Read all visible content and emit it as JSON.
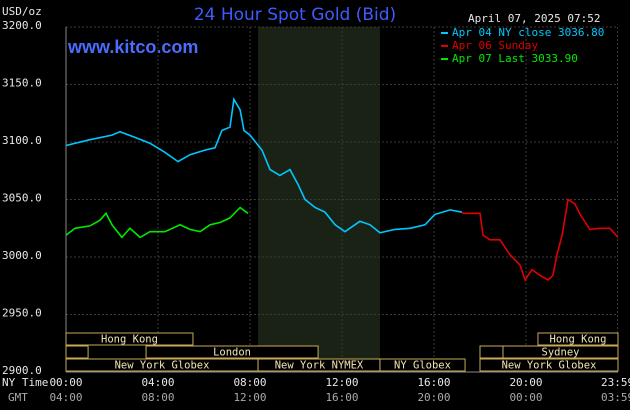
{
  "chart_data": {
    "type": "line",
    "title": "24 Hour Spot Gold (Bid)",
    "ylabel": "USD/oz",
    "timestamp": "April 07, 2025 07:52",
    "watermark": "www.kitco.com",
    "xlabel": "NY Time",
    "x2label": "GMT",
    "xlim": [
      0,
      24
    ],
    "ylim": [
      2900,
      3200
    ],
    "yticks": [
      {
        "value": 3200,
        "label": "3200.0"
      },
      {
        "value": 3150,
        "label": "3150.0"
      },
      {
        "value": 3100,
        "label": "3100.0"
      },
      {
        "value": 3050,
        "label": "3050.0"
      },
      {
        "value": 3000,
        "label": "3000.0"
      },
      {
        "value": 2950,
        "label": "2950.0"
      },
      {
        "value": 2900,
        "label": "2900.0"
      }
    ],
    "xticks": [
      {
        "value": 0,
        "label": "00:00"
      },
      {
        "value": 4,
        "label": "04:00"
      },
      {
        "value": 8,
        "label": "08:00"
      },
      {
        "value": 12,
        "label": "12:00"
      },
      {
        "value": 16,
        "label": "16:00"
      },
      {
        "value": 20,
        "label": "20:00"
      },
      {
        "value": 23.98,
        "label": "23:59"
      }
    ],
    "x2tick_labels": [
      "04:00",
      "08:00",
      "12:00",
      "16:00",
      "20:00",
      "00:00",
      "03:59"
    ],
    "grid": true,
    "highlight_range": [
      8.35,
      13.65
    ],
    "series": [
      {
        "name": "Apr 04 NY close 3036.80",
        "color": "#00c8ff",
        "x": [
          0,
          1.04,
          2,
          2.35,
          3,
          3.65,
          4.3,
          4.87,
          5.39,
          6.04,
          6.48,
          6.78,
          7.13,
          7.3,
          7.57,
          7.74,
          8,
          8.52,
          8.87,
          9.3,
          9.74,
          10.09,
          10.39,
          10.83,
          11.26,
          11.7,
          12.13,
          12.78,
          13.22,
          13.65,
          14.3,
          14.96,
          15.61,
          16.04,
          16.7,
          17.22
        ],
        "values": [
          3097,
          3102,
          3106,
          3109,
          3104,
          3099,
          3091,
          3083,
          3089,
          3093,
          3095,
          3110,
          3113,
          3137,
          3128,
          3110,
          3106,
          3093,
          3076,
          3071,
          3076,
          3063,
          3050,
          3043,
          3039,
          3028,
          3022,
          3031,
          3028,
          3021,
          3024,
          3025,
          3028,
          3037,
          3041,
          3039
        ]
      },
      {
        "name": "Apr 06 Sunday",
        "color": "#e00000",
        "x": [
          17.22,
          18,
          18.13,
          18.43,
          18.87,
          19.3,
          19.74,
          19.96,
          20.26,
          20.61,
          20.96,
          21.17,
          21.35,
          21.57,
          21.83,
          22.13,
          22.35,
          22.78,
          23.22,
          23.65,
          24
        ],
        "values": [
          3038,
          3038,
          3019,
          3015,
          3015,
          3002,
          2993,
          2980,
          2989,
          2984,
          2980,
          2984,
          3002,
          3019,
          3050,
          3046,
          3037,
          3024,
          3025,
          3025,
          3017
        ]
      },
      {
        "name": "Apr 07 Last 3033.90",
        "color": "#00e800",
        "x": [
          0,
          0.39,
          1.04,
          1.48,
          1.74,
          2,
          2.43,
          2.78,
          3.22,
          3.65,
          4.3,
          4.96,
          5.39,
          5.83,
          6.26,
          6.7,
          7.13,
          7.57,
          7.91
        ],
        "values": [
          3019,
          3025,
          3027,
          3032,
          3038,
          3028,
          3017,
          3025,
          3017,
          3022,
          3022,
          3028,
          3024,
          3022,
          3028,
          3030,
          3034,
          3043,
          3038
        ]
      }
    ],
    "sessions": [
      {
        "name": "Hong Kong",
        "start": 0,
        "end": 5.52,
        "row": 0
      },
      {
        "name": "Hong Kong",
        "start": 20.52,
        "end": 24,
        "row": 0
      },
      {
        "start": 0,
        "end": 0.96,
        "row": 1
      },
      {
        "name": "London",
        "start": 3.48,
        "end": 10.96,
        "row": 1
      },
      {
        "start": 18,
        "end": 19,
        "row": 1
      },
      {
        "name": "Sydney",
        "start": 19,
        "end": 24,
        "row": 1
      },
      {
        "name": "New York Globex",
        "start": 0,
        "end": 8.35,
        "row": 2
      },
      {
        "name": "New York NYMEX",
        "start": 8.35,
        "end": 13.65,
        "row": 2
      },
      {
        "name": "NY Globex",
        "start": 13.65,
        "end": 17.35,
        "row": 2
      },
      {
        "name": "New York Globex",
        "start": 18,
        "end": 24,
        "row": 2
      }
    ]
  }
}
